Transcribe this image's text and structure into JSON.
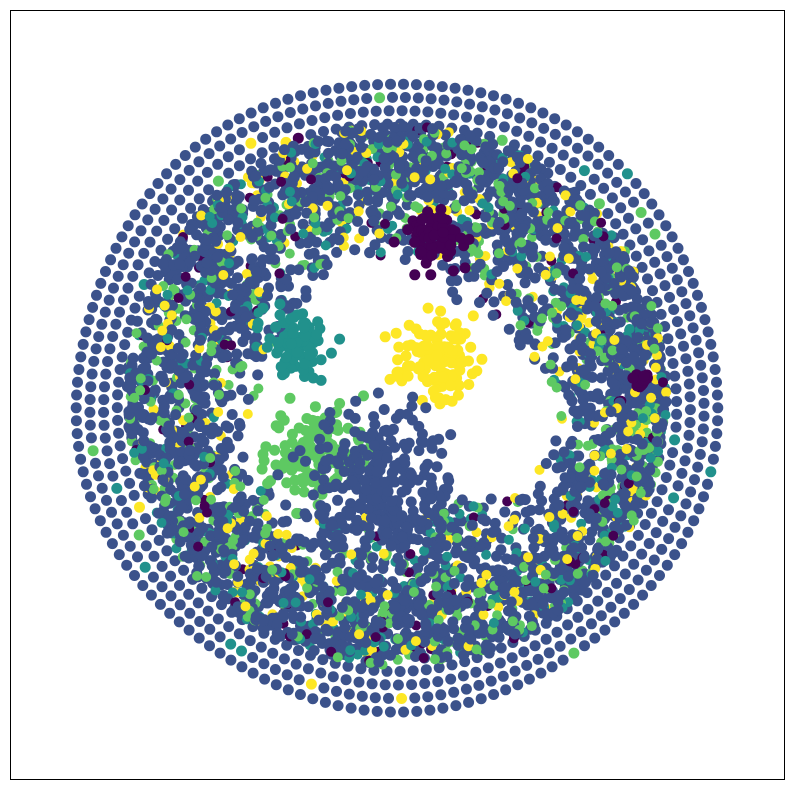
{
  "chart_data": {
    "type": "scatter",
    "title": "",
    "xlabel": "",
    "ylabel": "",
    "show_axis_ticks": false,
    "grid": false,
    "legend": "none",
    "marker": "filled-circle",
    "palette": {
      "class_0": "#440154",
      "class_1": "#3b528b",
      "class_2": "#21918c",
      "class_3": "#5ec962",
      "class_4": "#fde725"
    },
    "class_shares": {
      "class_0": 0.03,
      "class_1": 0.66,
      "class_2": 0.1,
      "class_3": 0.13,
      "class_4": 0.08
    },
    "clusters": [
      {
        "name": "purple-blob-top",
        "class": "class_0",
        "cx": 0.05,
        "cy": 0.22,
        "spread": 0.035
      },
      {
        "name": "teal-blob",
        "class": "class_2",
        "cx": -0.14,
        "cy": 0.07,
        "spread": 0.04
      },
      {
        "name": "yellow-blob",
        "class": "class_4",
        "cx": 0.05,
        "cy": 0.05,
        "spread": 0.05
      },
      {
        "name": "green-blob",
        "class": "class_3",
        "cx": -0.11,
        "cy": -0.08,
        "spread": 0.06
      },
      {
        "name": "purple-blob-right",
        "class": "class_0",
        "cx": 0.34,
        "cy": 0.02,
        "spread": 0.01
      },
      {
        "name": "navy-core",
        "class": "class_1",
        "cx": -0.02,
        "cy": -0.12,
        "spread": 0.09
      }
    ]
  }
}
